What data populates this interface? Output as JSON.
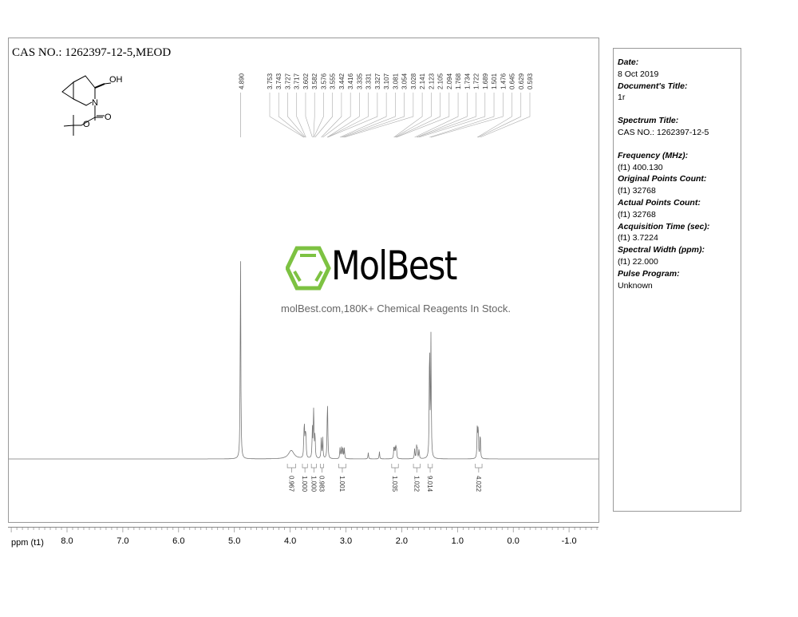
{
  "title": "CAS NO.: 1262397-12-5,MEOD",
  "molecule": {
    "label_oh": "OH",
    "label_n": "N",
    "label_o1": "O",
    "label_o2": "O"
  },
  "watermark": {
    "brand": "MolBest",
    "tagline": "molBest.com,180K+ Chemical Reagents In Stock.",
    "color": "#7dc242"
  },
  "info_panel": [
    {
      "key": "Date:",
      "value": "8 Oct 2019"
    },
    {
      "key": "Document's Title:",
      "value": "1r"
    },
    {
      "key": "Spectrum Title:",
      "value": "CAS NO.: 1262397-12-5",
      "gap_before": true
    },
    {
      "key": "Frequency (MHz):",
      "value": "(f1) 400.130",
      "gap_before": true
    },
    {
      "key": "Original Points Count:",
      "value": "(f1) 32768"
    },
    {
      "key": "Actual Points Count:",
      "value": "(f1) 32768"
    },
    {
      "key": "Acquisition Time (sec):",
      "value": "(f1) 3.7224"
    },
    {
      "key": "Spectral Width (ppm):",
      "value": "(f1) 22.000"
    },
    {
      "key": "Pulse Program:",
      "value": "Unknown"
    }
  ],
  "chart_data": {
    "type": "line",
    "xlabel": "ppm (t1)",
    "xlim": [
      9.06,
      -1.53
    ],
    "x_ticks": [
      "8.0",
      "7.0",
      "6.0",
      "5.0",
      "4.0",
      "3.0",
      "2.0",
      "1.0",
      "0.0",
      "-1.0"
    ],
    "x_tick_values": [
      8,
      7,
      6,
      5,
      4,
      3,
      2,
      1,
      0,
      -1
    ],
    "grid": false,
    "peak_labels_single": [
      "4.890"
    ],
    "peak_labels": [
      "3.753",
      "3.743",
      "3.727",
      "3.717",
      "3.602",
      "3.582",
      "3.576",
      "3.555",
      "3.442",
      "3.416",
      "3.335",
      "3.331",
      "3.327",
      "3.107",
      "3.081",
      "3.054",
      "3.028",
      "2.141",
      "2.123",
      "2.105",
      "2.094",
      "1.768",
      "1.734",
      "1.722",
      "1.689",
      "1.501",
      "1.476",
      "0.645",
      "0.629",
      "0.593"
    ],
    "peaks": [
      {
        "ppm": 4.89,
        "intensity": 1.0
      },
      {
        "ppm": 3.98,
        "intensity": 0.04,
        "width": 0.06
      },
      {
        "ppm": 3.753,
        "intensity": 0.1
      },
      {
        "ppm": 3.743,
        "intensity": 0.12
      },
      {
        "ppm": 3.727,
        "intensity": 0.1
      },
      {
        "ppm": 3.717,
        "intensity": 0.09
      },
      {
        "ppm": 3.602,
        "intensity": 0.14
      },
      {
        "ppm": 3.582,
        "intensity": 0.15
      },
      {
        "ppm": 3.576,
        "intensity": 0.13
      },
      {
        "ppm": 3.555,
        "intensity": 0.12
      },
      {
        "ppm": 3.442,
        "intensity": 0.1
      },
      {
        "ppm": 3.416,
        "intensity": 0.1
      },
      {
        "ppm": 3.335,
        "intensity": 0.1
      },
      {
        "ppm": 3.331,
        "intensity": 0.12
      },
      {
        "ppm": 3.327,
        "intensity": 0.1
      },
      {
        "ppm": 3.107,
        "intensity": 0.05
      },
      {
        "ppm": 3.081,
        "intensity": 0.06
      },
      {
        "ppm": 3.054,
        "intensity": 0.06
      },
      {
        "ppm": 3.028,
        "intensity": 0.05
      },
      {
        "ppm": 2.6,
        "intensity": 0.03
      },
      {
        "ppm": 2.4,
        "intensity": 0.035
      },
      {
        "ppm": 2.141,
        "intensity": 0.05
      },
      {
        "ppm": 2.123,
        "intensity": 0.055
      },
      {
        "ppm": 2.105,
        "intensity": 0.05
      },
      {
        "ppm": 2.094,
        "intensity": 0.045
      },
      {
        "ppm": 1.768,
        "intensity": 0.05
      },
      {
        "ppm": 1.734,
        "intensity": 0.055
      },
      {
        "ppm": 1.722,
        "intensity": 0.05
      },
      {
        "ppm": 1.689,
        "intensity": 0.045
      },
      {
        "ppm": 1.501,
        "intensity": 0.59
      },
      {
        "ppm": 1.476,
        "intensity": 0.57
      },
      {
        "ppm": 0.645,
        "intensity": 0.15
      },
      {
        "ppm": 0.629,
        "intensity": 0.16
      },
      {
        "ppm": 0.593,
        "intensity": 0.13
      }
    ],
    "integrals": [
      {
        "from": 4.05,
        "to": 3.9,
        "value": "0.967"
      },
      {
        "from": 3.78,
        "to": 3.69,
        "value": "1.000"
      },
      {
        "from": 3.62,
        "to": 3.53,
        "value": "1.000"
      },
      {
        "from": 3.46,
        "to": 3.4,
        "value": "0.983"
      },
      {
        "from": 3.13,
        "to": 3.0,
        "value": "1.001"
      },
      {
        "from": 2.18,
        "to": 2.06,
        "value": "1.035"
      },
      {
        "from": 1.79,
        "to": 1.67,
        "value": "1.022"
      },
      {
        "from": 1.53,
        "to": 1.45,
        "value": "9.014"
      },
      {
        "from": 0.68,
        "to": 0.56,
        "value": "4.022"
      }
    ]
  }
}
